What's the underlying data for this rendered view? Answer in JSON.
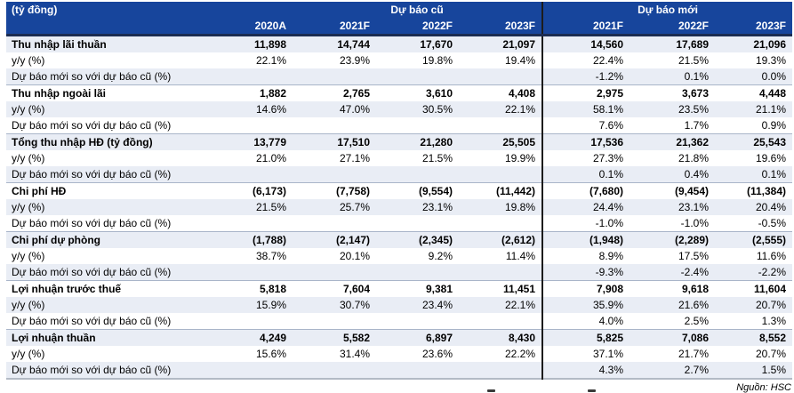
{
  "colors": {
    "header_bg": "#17459C",
    "row_alt_bg": "#E9EDF5",
    "divider_line": "#1C1C1C"
  },
  "header": {
    "unit_label": "(tỷ đồng)",
    "group_old": "Dự báo cũ",
    "group_new": "Dự báo mới",
    "years_old": [
      "2020A",
      "2021F",
      "2022F",
      "2023F"
    ],
    "years_new": [
      "2021F",
      "2022F",
      "2023F"
    ]
  },
  "rows": [
    {
      "label": "Thu nhập lãi thuần",
      "style": "section",
      "old": [
        "11,898",
        "14,744",
        "17,670",
        "21,097"
      ],
      "new": [
        "14,560",
        "17,689",
        "21,096"
      ]
    },
    {
      "label": "y/y (%)",
      "style": "plain",
      "old": [
        "22.1%",
        "23.9%",
        "19.8%",
        "19.4%"
      ],
      "new": [
        "22.4%",
        "21.5%",
        "19.3%"
      ]
    },
    {
      "label": "Dự báo mới so với dự báo cũ (%)",
      "style": "plain",
      "old": [
        "",
        "",
        "",
        ""
      ],
      "new": [
        "-1.2%",
        "0.1%",
        "0.0%"
      ]
    },
    {
      "label": "Thu nhập ngoài lãi",
      "style": "section",
      "old": [
        "1,882",
        "2,765",
        "3,610",
        "4,408"
      ],
      "new": [
        "2,975",
        "3,673",
        "4,448"
      ]
    },
    {
      "label": "y/y (%)",
      "style": "plain",
      "old": [
        "14.6%",
        "47.0%",
        "30.5%",
        "22.1%"
      ],
      "new": [
        "58.1%",
        "23.5%",
        "21.1%"
      ]
    },
    {
      "label": "Dự báo mới so với dự báo cũ (%)",
      "style": "plain",
      "old": [
        "",
        "",
        "",
        ""
      ],
      "new": [
        "7.6%",
        "1.7%",
        "0.9%"
      ]
    },
    {
      "label": "Tổng thu nhập HĐ (tỷ đồng)",
      "style": "section",
      "old": [
        "13,779",
        "17,510",
        "21,280",
        "25,505"
      ],
      "new": [
        "17,536",
        "21,362",
        "25,543"
      ]
    },
    {
      "label": "y/y (%)",
      "style": "plain",
      "old": [
        "21.0%",
        "27.1%",
        "21.5%",
        "19.9%"
      ],
      "new": [
        "27.3%",
        "21.8%",
        "19.6%"
      ]
    },
    {
      "label": "Dự báo mới so với dự báo cũ (%)",
      "style": "plain",
      "old": [
        "",
        "",
        "",
        ""
      ],
      "new": [
        "0.1%",
        "0.4%",
        "0.1%"
      ]
    },
    {
      "label": "Chi phí HĐ",
      "style": "section",
      "old": [
        "(6,173)",
        "(7,758)",
        "(9,554)",
        "(11,442)"
      ],
      "new": [
        "(7,680)",
        "(9,454)",
        "(11,384)"
      ]
    },
    {
      "label": "y/y (%)",
      "style": "plain",
      "old": [
        "21.5%",
        "25.7%",
        "23.1%",
        "19.8%"
      ],
      "new": [
        "24.4%",
        "23.1%",
        "20.4%"
      ]
    },
    {
      "label": "Dự báo mới so với dự báo cũ (%)",
      "style": "plain",
      "old": [
        "",
        "",
        "",
        ""
      ],
      "new": [
        "-1.0%",
        "-1.0%",
        "-0.5%"
      ]
    },
    {
      "label": "Chi phí dự phòng",
      "style": "section",
      "old": [
        "(1,788)",
        "(2,147)",
        "(2,345)",
        "(2,612)"
      ],
      "new": [
        "(1,948)",
        "(2,289)",
        "(2,555)"
      ]
    },
    {
      "label": "y/y (%)",
      "style": "plain",
      "old": [
        "38.7%",
        "20.1%",
        "9.2%",
        "11.4%"
      ],
      "new": [
        "8.9%",
        "17.5%",
        "11.6%"
      ]
    },
    {
      "label": "Dự báo mới so với dự báo cũ (%)",
      "style": "plain",
      "old": [
        "",
        "",
        "",
        ""
      ],
      "new": [
        "-9.3%",
        "-2.4%",
        "-2.2%"
      ]
    },
    {
      "label": "Lợi nhuận trước thuế",
      "style": "section",
      "old": [
        "5,818",
        "7,604",
        "9,381",
        "11,451"
      ],
      "new": [
        "7,908",
        "9,618",
        "11,604"
      ]
    },
    {
      "label": "y/y (%)",
      "style": "plain",
      "old": [
        "15.9%",
        "30.7%",
        "23.4%",
        "22.1%"
      ],
      "new": [
        "35.9%",
        "21.6%",
        "20.7%"
      ]
    },
    {
      "label": "Dự báo mới so với dự báo cũ (%)",
      "style": "plain",
      "old": [
        "",
        "",
        "",
        ""
      ],
      "new": [
        "4.0%",
        "2.5%",
        "1.3%"
      ]
    },
    {
      "label": "Lợi nhuận thuần",
      "style": "section",
      "old": [
        "4,249",
        "5,582",
        "6,897",
        "8,430"
      ],
      "new": [
        "5,825",
        "7,086",
        "8,552"
      ]
    },
    {
      "label": "y/y (%)",
      "style": "plain",
      "old": [
        "15.6%",
        "31.4%",
        "23.6%",
        "22.2%"
      ],
      "new": [
        "37.1%",
        "21.7%",
        "20.7%"
      ]
    },
    {
      "label": "Dự báo mới so với dự báo cũ (%)",
      "style": "plain",
      "old": [
        "",
        "",
        "",
        ""
      ],
      "new": [
        "4.3%",
        "2.7%",
        "1.5%"
      ]
    }
  ],
  "footer": {
    "source": "Nguồn: HSC"
  }
}
